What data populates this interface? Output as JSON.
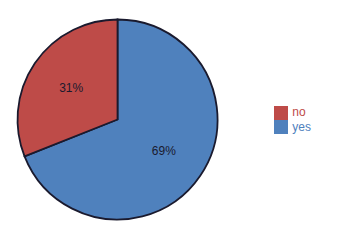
{
  "chart_data": {
    "type": "pie",
    "categories": [
      "yes",
      "no"
    ],
    "values": [
      69,
      31
    ],
    "value_labels": [
      "69%",
      "31%"
    ],
    "colors": [
      "#4f81bd",
      "#be4b48"
    ],
    "data_labels": true,
    "legend": "right"
  }
}
